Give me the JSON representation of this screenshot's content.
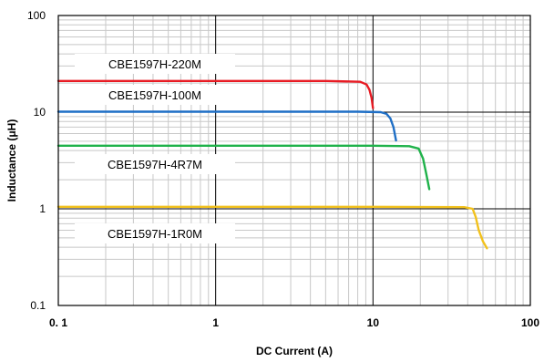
{
  "chart_data": {
    "type": "line",
    "x_scale": "log",
    "y_scale": "log",
    "xlim": [
      0.1,
      100
    ],
    "ylim": [
      0.1,
      100
    ],
    "xlabel": "DC Current (A)",
    "ylabel": "Inductance (μH)",
    "x_ticks": [
      0.1,
      1,
      10,
      100
    ],
    "x_tick_labels": [
      "0. 1",
      "1",
      "10",
      "100"
    ],
    "y_ticks": [
      0.1,
      1,
      10,
      100
    ],
    "y_tick_labels": [
      "0.1",
      "1",
      "10",
      "100"
    ],
    "grid": true,
    "legend": "inline labels",
    "series": [
      {
        "name": "CBE1597H-220M",
        "color": "#e81b23",
        "x": [
          0.1,
          1,
          5,
          8.3,
          9.1,
          9.5,
          9.8,
          10.0
        ],
        "y": [
          21,
          21,
          21,
          20.6,
          19.3,
          17,
          14,
          11
        ]
      },
      {
        "name": "CBE1597H-100M",
        "color": "#1f6fc6",
        "x": [
          0.1,
          1,
          8,
          11.2,
          12.2,
          12.9,
          13.5,
          14.0
        ],
        "y": [
          10.1,
          10.1,
          10.1,
          10.0,
          9.6,
          8.6,
          7.0,
          5.1
        ]
      },
      {
        "name": "CBE1597H-4R7M",
        "color": "#1fb24a",
        "x": [
          0.1,
          1,
          10,
          17,
          19.5,
          20.8,
          21.8,
          22.8
        ],
        "y": [
          4.5,
          4.5,
          4.5,
          4.45,
          4.2,
          3.3,
          2.3,
          1.6
        ]
      },
      {
        "name": "CBE1597H-1R0M",
        "color": "#f2c11c",
        "x": [
          0.1,
          1,
          10,
          38,
          43,
          45,
          47,
          50,
          53
        ],
        "y": [
          1.05,
          1.05,
          1.05,
          1.04,
          1.0,
          0.82,
          0.6,
          0.46,
          0.39
        ]
      }
    ]
  }
}
